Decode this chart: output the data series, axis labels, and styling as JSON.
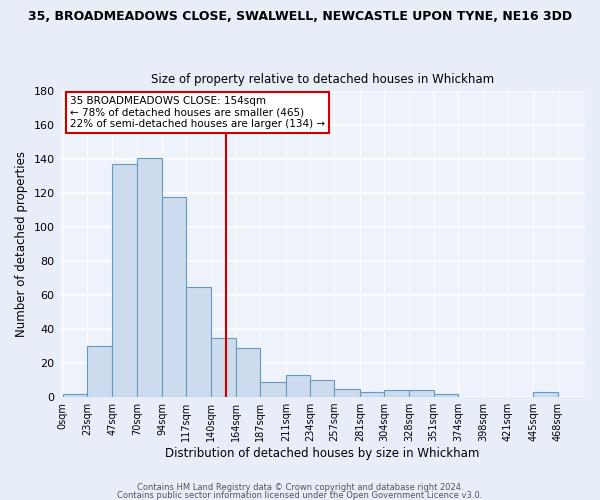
{
  "title1": "35, BROADMEADOWS CLOSE, SWALWELL, NEWCASTLE UPON TYNE, NE16 3DD",
  "title2": "Size of property relative to detached houses in Whickham",
  "xlabel": "Distribution of detached houses by size in Whickham",
  "ylabel": "Number of detached properties",
  "bar_color": "#ccdcee",
  "bar_edge_color": "#6699bb",
  "background_color": "#e8eef8",
  "ax_background_color": "#eef2fa",
  "grid_color": "#ffffff",
  "categories": [
    "0sqm",
    "23sqm",
    "47sqm",
    "70sqm",
    "94sqm",
    "117sqm",
    "140sqm",
    "164sqm",
    "187sqm",
    "211sqm",
    "234sqm",
    "257sqm",
    "281sqm",
    "304sqm",
    "328sqm",
    "351sqm",
    "374sqm",
    "398sqm",
    "421sqm",
    "445sqm",
    "468sqm"
  ],
  "values": [
    2,
    30,
    137,
    141,
    118,
    65,
    35,
    29,
    9,
    13,
    10,
    5,
    3,
    4,
    4,
    2,
    0,
    0,
    0,
    3,
    0
  ],
  "left_edges": [
    0,
    23,
    47,
    70,
    94,
    117,
    140,
    164,
    187,
    211,
    234,
    257,
    281,
    304,
    328,
    351,
    374,
    398,
    421,
    445,
    468
  ],
  "ylim": [
    0,
    180
  ],
  "yticks": [
    0,
    20,
    40,
    60,
    80,
    100,
    120,
    140,
    160,
    180
  ],
  "property_line_x": 154,
  "annotation_line1": "35 BROADMEADOWS CLOSE: 154sqm",
  "annotation_line2": "← 78% of detached houses are smaller (465)",
  "annotation_line3": "22% of semi-detached houses are larger (134) →",
  "annotation_box_color": "#ffffff",
  "annotation_box_edge": "#cc0000",
  "property_line_color": "#cc0000",
  "footnote1": "Contains HM Land Registry data © Crown copyright and database right 2024.",
  "footnote2": "Contains public sector information licensed under the Open Government Licence v3.0."
}
